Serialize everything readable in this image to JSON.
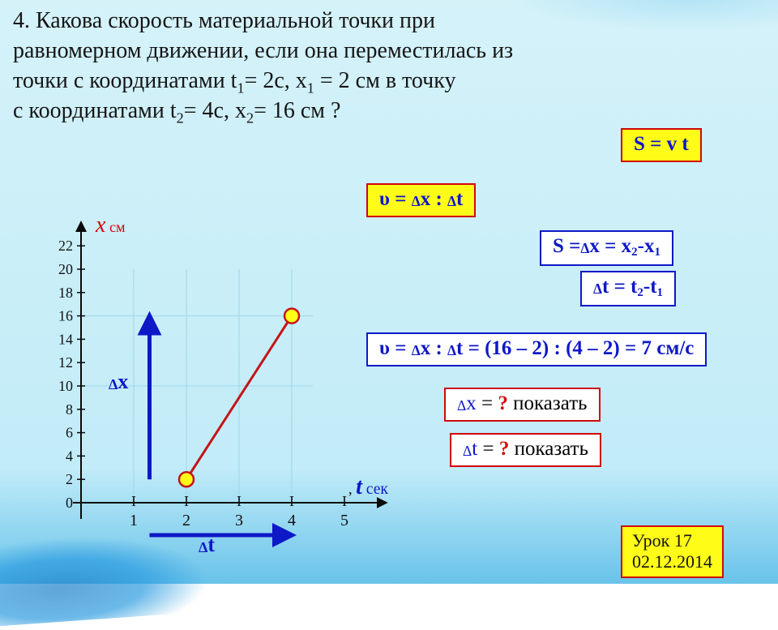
{
  "background_color": "#c9eef8",
  "text_color": "#151515",
  "problem": {
    "line1": "4. Какова скорость материальной точки при",
    "line2": "равномерном движении, если она  переместилась из",
    "line3_prefix": "точки  с координатами  t",
    "line3_t1_sub": "1",
    "line3_t1_val": "= 2с,   x",
    "line3_x1_sub": "1",
    "line3_x1_val": " = 2 см в точку",
    "line4_prefix": " с координатами   t",
    "line4_t2_sub": "2",
    "line4_t2_val": "= 4с,     x",
    "line4_x2_sub": "2",
    "line4_x2_val": "= 16 см ?"
  },
  "formulas": {
    "svt": "S =  v t",
    "v_def_prefix": "υ = ",
    "v_def_dx": "х",
    "v_def_sep": " : ",
    "v_def_dt": "t",
    "s_eq_prefix": "S =",
    "s_eq_dx": "х",
    "s_eq_mid": " = x",
    "s_eq_sub2": "2",
    "s_eq_minus": "-x",
    "s_eq_sub1": "1",
    "dt_eq_prefix": "t",
    "dt_eq_mid": " = t",
    "dt_eq_sub2": "2",
    "dt_eq_minus": "-t",
    "dt_eq_sub1": "1",
    "v_calc_prefix": "υ = ",
    "v_calc_dx": "х",
    "v_calc_sep1": "  : ",
    "v_calc_dt": "t",
    "v_calc_expr": "  = (16 – 2) : (4 – 2) = 7 см/с",
    "dx_q_prefix": "х",
    "dx_q_mid": "  = ",
    "dx_q_mark": "?",
    "dx_q_tail": " показать",
    "dt_q_prefix": "t",
    "dt_q_mid": "  = ",
    "dt_q_mark": "?",
    "dt_q_tail": "  показать"
  },
  "urok": {
    "line1": "Урок  17",
    "line2": "02.12.2014"
  },
  "chart": {
    "type": "line",
    "y_axis_title": "х",
    "y_axis_unit": " см",
    "x_axis_title": "t",
    "x_axis_unit": " сек",
    "x_axis_comma": ", ",
    "delta_x_label": "х",
    "delta_t_label": "t",
    "background_color": "transparent",
    "grid_color": "#9dd6e8",
    "axis_color": "#0a0a0a",
    "line_color": "#c31517",
    "line_width": 3,
    "marker_fill": "#fffc18",
    "marker_stroke": "#c31517",
    "marker_radius": 9,
    "delta_arrow_color": "#0d18c7",
    "delta_arrow_width": 5,
    "xlim": [
      0,
      5.6
    ],
    "ylim": [
      0,
      23
    ],
    "x_ticks": [
      1,
      2,
      3,
      4,
      5
    ],
    "y_ticks": [
      0,
      2,
      4,
      6,
      8,
      10,
      12,
      14,
      16,
      18,
      20,
      22
    ],
    "points": [
      {
        "t": 2,
        "x": 2
      },
      {
        "t": 4,
        "x": 16
      }
    ],
    "delta_x_arrow": {
      "t": 1.3,
      "x_from": 2,
      "x_to": 16
    },
    "delta_t_arrow": {
      "x": -1.2,
      "t_from": 1.3,
      "t_to": 4
    },
    "grid_v_at": [
      1,
      2,
      3,
      4
    ],
    "grid_h_at": [
      10,
      16
    ]
  }
}
